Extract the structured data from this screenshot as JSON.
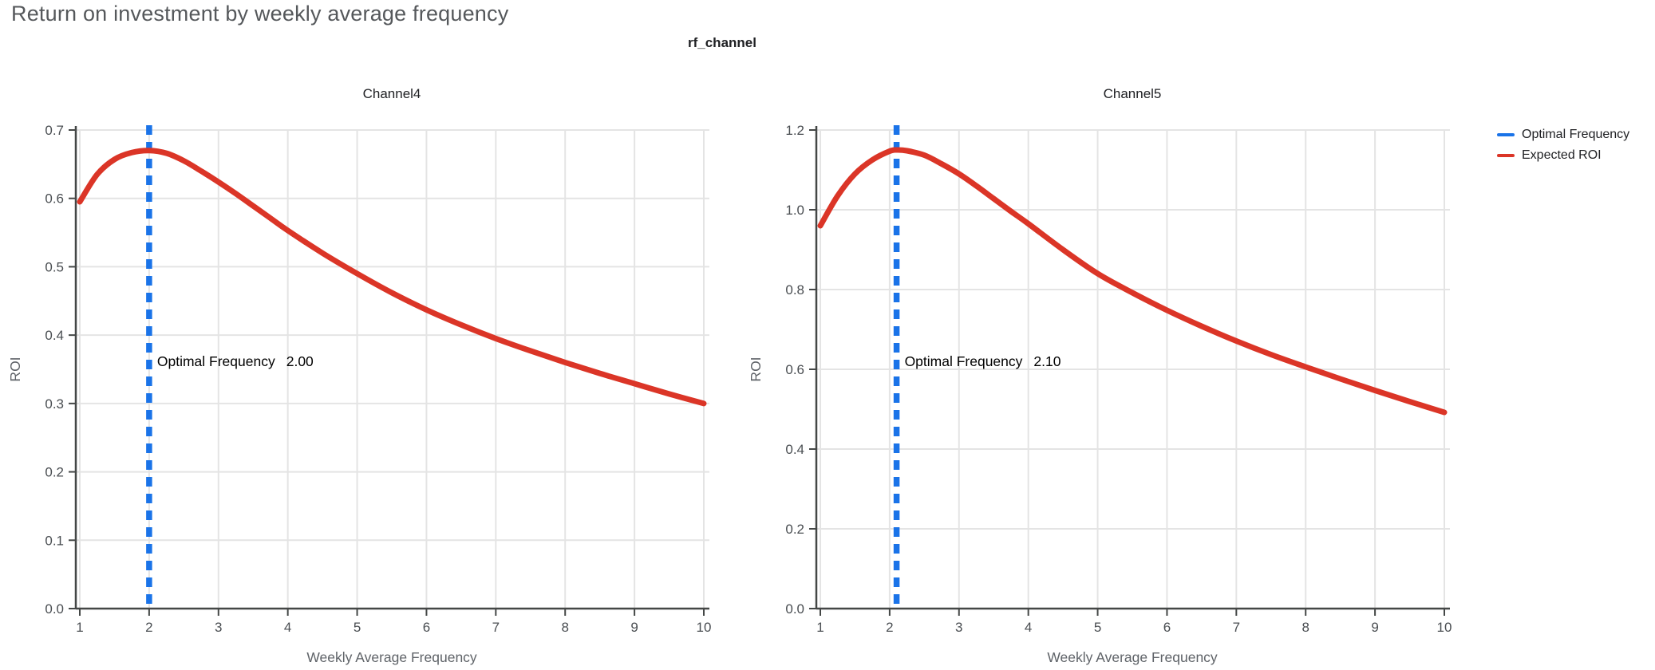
{
  "page": {
    "title": "Return on investment by weekly average frequency"
  },
  "facet_header": "rf_channel",
  "legend": {
    "items": [
      {
        "label": "Optimal Frequency",
        "color": "#1A73E8"
      },
      {
        "label": "Expected ROI",
        "color": "#DB3527"
      }
    ]
  },
  "colors": {
    "title": "#55585B",
    "facet_title": "#202124",
    "subplot_title": "#202124",
    "grid": "#E4E4E4",
    "axis": "#444746",
    "tick_label": "#4A4E52",
    "axis_title": "#5F6368",
    "annotation": "#000000",
    "optimal_line": "#1A73E8",
    "roi_line": "#DB3527",
    "background": "#FFFFFF"
  },
  "chart_data": [
    {
      "type": "line",
      "title": "Channel4",
      "xlabel": "Weekly Average Frequency",
      "ylabel": "ROI",
      "xlim": [
        1,
        10
      ],
      "ylim": [
        0,
        0.7
      ],
      "x_ticks": [
        1,
        2,
        3,
        4,
        5,
        6,
        7,
        8,
        9,
        10
      ],
      "y_ticks": [
        "0.0",
        "0.1",
        "0.2",
        "0.3",
        "0.4",
        "0.5",
        "0.6",
        "0.7"
      ],
      "grid": true,
      "optimal_frequency": 2.0,
      "annotation_label": "Optimal Frequency",
      "annotation_value": "2.00",
      "series": [
        {
          "name": "Expected ROI",
          "x": [
            1,
            1.25,
            1.5,
            1.75,
            2,
            2.25,
            2.5,
            2.75,
            3,
            3.25,
            3.5,
            3.75,
            4,
            4.5,
            5,
            5.5,
            6,
            6.5,
            7,
            7.5,
            8,
            8.5,
            9,
            9.5,
            10
          ],
          "y": [
            0.595,
            0.635,
            0.657,
            0.667,
            0.67,
            0.666,
            0.655,
            0.64,
            0.624,
            0.607,
            0.589,
            0.571,
            0.553,
            0.52,
            0.49,
            0.462,
            0.437,
            0.415,
            0.395,
            0.377,
            0.36,
            0.344,
            0.329,
            0.314,
            0.3
          ]
        }
      ]
    },
    {
      "type": "line",
      "title": "Channel5",
      "xlabel": "Weekly Average Frequency",
      "ylabel": "ROI",
      "xlim": [
        1,
        10
      ],
      "ylim": [
        0,
        1.2
      ],
      "x_ticks": [
        1,
        2,
        3,
        4,
        5,
        6,
        7,
        8,
        9,
        10
      ],
      "y_ticks": [
        "0.0",
        "0.2",
        "0.4",
        "0.6",
        "0.8",
        "1.0",
        "1.2"
      ],
      "grid": true,
      "optimal_frequency": 2.1,
      "annotation_label": "Optimal Frequency",
      "annotation_value": "2.10",
      "series": [
        {
          "name": "Expected ROI",
          "x": [
            1,
            1.25,
            1.5,
            1.75,
            2,
            2.1,
            2.25,
            2.5,
            2.75,
            3,
            3.25,
            3.5,
            3.75,
            4,
            4.5,
            5,
            5.5,
            6,
            6.5,
            7,
            7.5,
            8,
            8.5,
            9,
            9.5,
            10
          ],
          "y": [
            0.96,
            1.035,
            1.09,
            1.125,
            1.147,
            1.15,
            1.148,
            1.137,
            1.115,
            1.09,
            1.06,
            1.028,
            0.996,
            0.965,
            0.9,
            0.84,
            0.792,
            0.748,
            0.708,
            0.671,
            0.637,
            0.606,
            0.576,
            0.547,
            0.519,
            0.492
          ]
        }
      ]
    }
  ]
}
